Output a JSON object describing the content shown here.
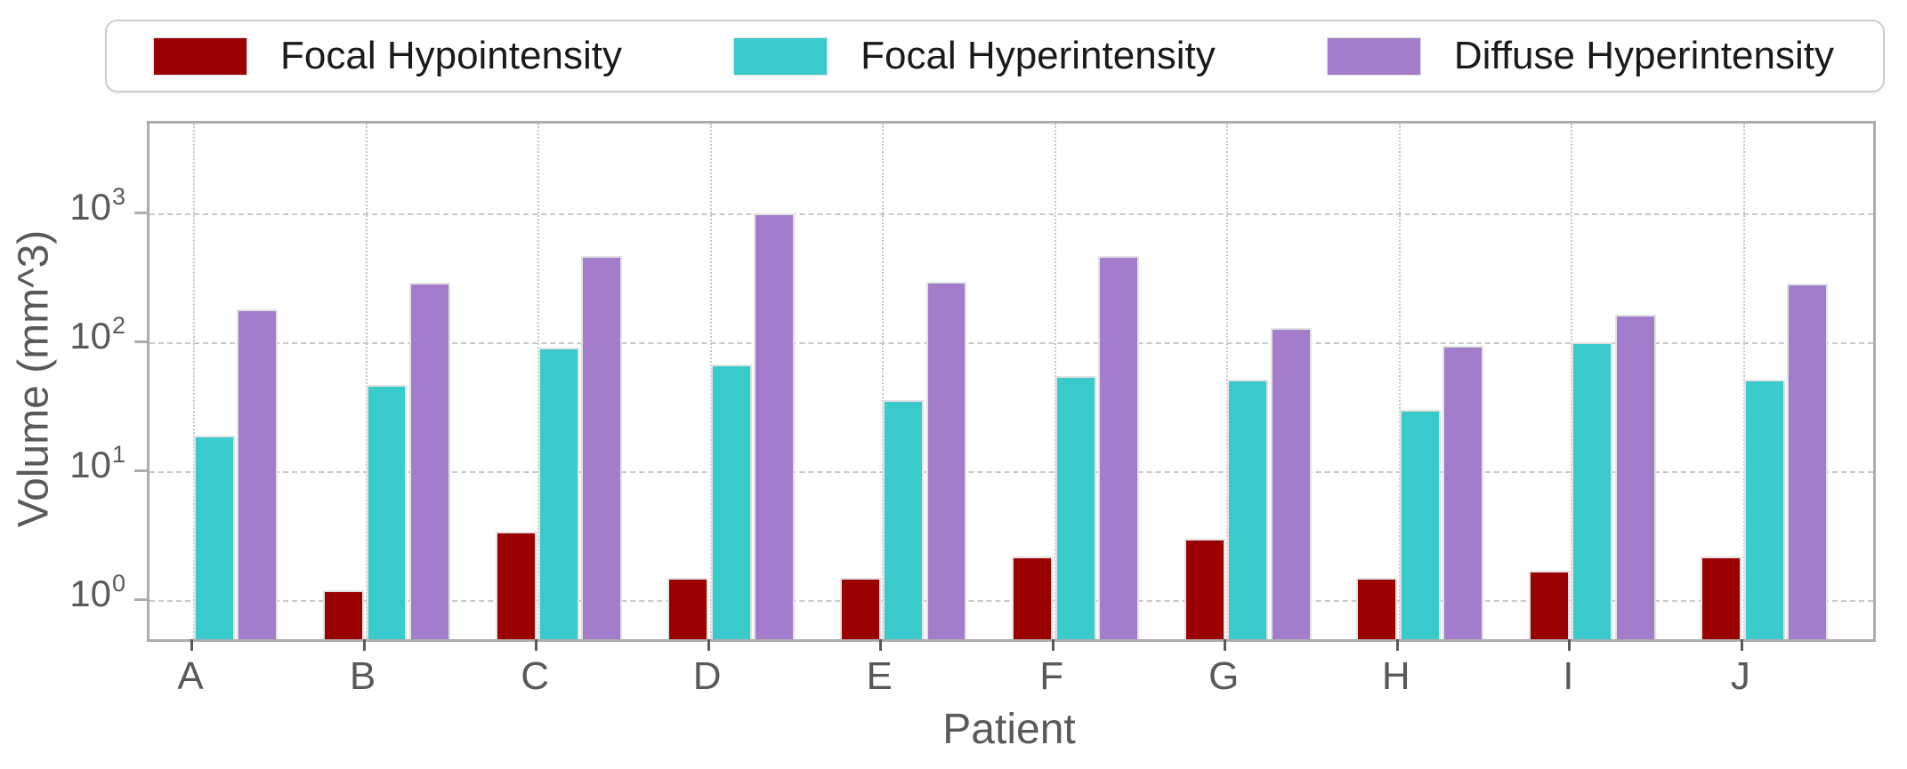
{
  "figure": {
    "background": "#ffffff"
  },
  "legend": {
    "position": "top"
  },
  "chart_data": {
    "type": "bar",
    "title": "",
    "xlabel": "Patient",
    "ylabel": "Volume (mm^3)",
    "yscale": "log",
    "ylim": [
      0.5,
      5000
    ],
    "ytick_base": "10",
    "ytick_exponents": [
      0,
      1,
      2,
      3
    ],
    "grid": true,
    "legend_position": "top",
    "categories": [
      "A",
      "B",
      "C",
      "D",
      "E",
      "F",
      "G",
      "H",
      "I",
      "J"
    ],
    "series": [
      {
        "name": "Focal Hypointensity",
        "color": "#9b0000",
        "values": [
          null,
          1.2,
          3.4,
          1.5,
          1.5,
          2.2,
          3.0,
          1.5,
          1.7,
          2.2
        ]
      },
      {
        "name": "Focal Hyperintensity",
        "color": "#39cbcb",
        "values": [
          19,
          47,
          92,
          68,
          36,
          55,
          52,
          30,
          100,
          52
        ]
      },
      {
        "name": "Diffuse Hyperintensity",
        "color": "#a37ccb",
        "values": [
          180,
          290,
          470,
          1000,
          295,
          470,
          130,
          95,
          165,
          285
        ]
      }
    ]
  }
}
